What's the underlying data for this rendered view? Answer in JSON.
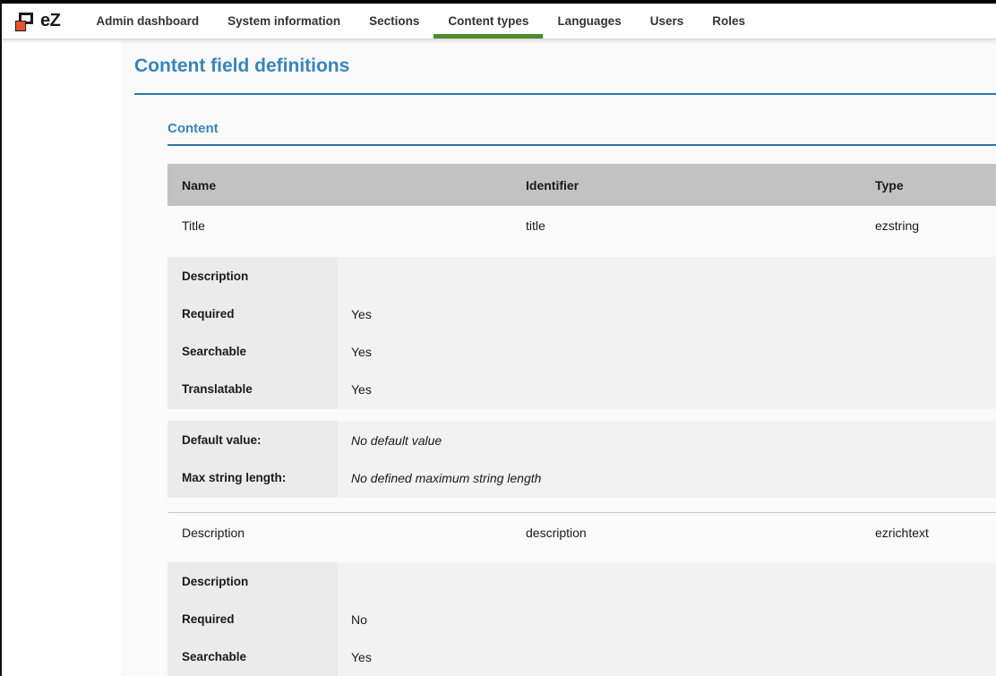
{
  "nav": {
    "logo": "eZ",
    "items": [
      {
        "label": "Admin dashboard",
        "active": false
      },
      {
        "label": "System information",
        "active": false
      },
      {
        "label": "Sections",
        "active": false
      },
      {
        "label": "Content types",
        "active": true
      },
      {
        "label": "Languages",
        "active": false
      },
      {
        "label": "Users",
        "active": false
      },
      {
        "label": "Roles",
        "active": false
      }
    ]
  },
  "page": {
    "title": "Content field definitions"
  },
  "section": {
    "title": "Content"
  },
  "table": {
    "headers": {
      "name": "Name",
      "identifier": "Identifier",
      "type": "Type"
    }
  },
  "fields": [
    {
      "name": "Title",
      "identifier": "title",
      "type": "ezstring",
      "attributes": [
        {
          "label": "Description",
          "value": ""
        },
        {
          "label": "Required",
          "value": "Yes"
        },
        {
          "label": "Searchable",
          "value": "Yes"
        },
        {
          "label": "Translatable",
          "value": "Yes"
        }
      ],
      "settings": [
        {
          "label": "Default value:",
          "value": "No default value"
        },
        {
          "label": "Max string length:",
          "value": "No defined maximum string length"
        }
      ]
    },
    {
      "name": "Description",
      "identifier": "description",
      "type": "ezrichtext",
      "attributes": [
        {
          "label": "Description",
          "value": ""
        },
        {
          "label": "Required",
          "value": "No"
        },
        {
          "label": "Searchable",
          "value": "Yes"
        }
      ]
    }
  ],
  "colors": {
    "accent_blue": "#3884bc",
    "rule_blue": "#2e76a8",
    "active_green": "#4f8a2e",
    "header_gray": "#c2c2c2",
    "label_gray": "#ebebeb",
    "block_gray": "#f2f2f2",
    "logo_orange": "#e8532f"
  }
}
